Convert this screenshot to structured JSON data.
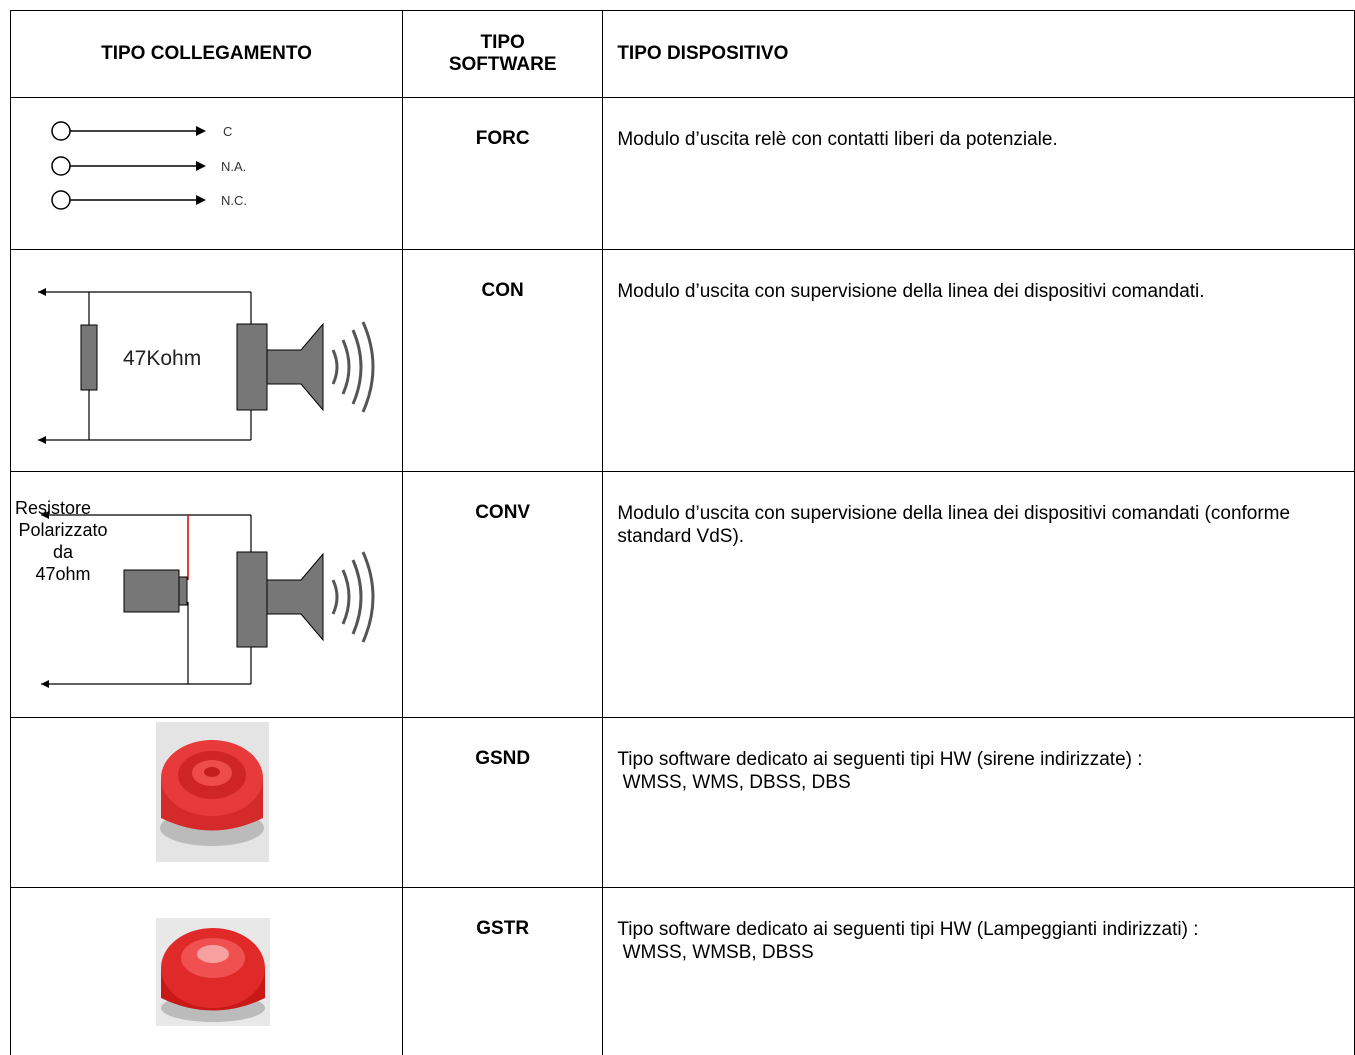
{
  "header": {
    "col1": "TIPO COLLEGAMENTO",
    "col2": [
      "TIPO",
      "SOFTWARE"
    ],
    "col3": "TIPO DISPOSITIVO"
  },
  "rows": [
    {
      "software": "FORC",
      "description": [
        "Modulo d’uscita relè con contatti liberi da potenziale."
      ],
      "diagram": {
        "labels": [
          "C",
          "N.A.",
          "N.C."
        ]
      }
    },
    {
      "software": "CON",
      "description": [
        "Modulo d’uscita con supervisione della linea dei dispositivi comandati."
      ],
      "diagram": {
        "label": "47Kohm"
      }
    },
    {
      "software": "CONV",
      "description": [
        "Modulo d’uscita con supervisione della linea dei dispositivi comandati (conforme standard VdS)."
      ],
      "diagram": {
        "label": [
          "Resistore",
          "Polarizzato",
          "da",
          "47ohm"
        ]
      }
    },
    {
      "software": "GSND",
      "description": [
        "Tipo software dedicato ai seguenti tipi HW (sirene indirizzate) :",
        " WMSS, WMS, DBSS, DBS"
      ]
    },
    {
      "software": "GSTR",
      "description": [
        "Tipo software dedicato ai seguenti tipi HW (Lampeggianti indirizzati) :",
        " WMSS, WMSB, DBSS"
      ]
    }
  ]
}
